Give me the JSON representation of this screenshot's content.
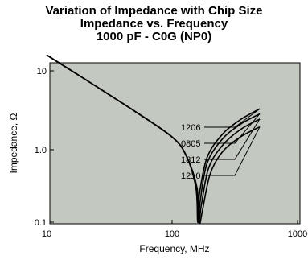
{
  "chart_data": {
    "type": "line",
    "title": [
      "Variation of Impedance with Chip Size",
      "Impedance vs. Frequency",
      "1000 pF - C0G (NP0)"
    ],
    "xlabel": "Frequency, MHz",
    "ylabel": "Impedance, Ω",
    "xscale": "log",
    "yscale": "log",
    "xlim": [
      10,
      1000
    ],
    "ylim": [
      0.1,
      12
    ],
    "x_ticks": [
      10,
      100,
      1000
    ],
    "x_tick_labels": [
      "10",
      "100",
      "1000"
    ],
    "y_ticks": [
      0.1,
      1,
      10
    ],
    "y_tick_labels": [
      "0.1",
      "1.0",
      "10"
    ],
    "background": "#c3c8c1",
    "series": [
      {
        "name": "1206",
        "x": [
          10,
          20,
          50,
          100,
          130,
          155,
          160,
          165,
          190,
          250,
          350,
          500
        ],
        "y": [
          15.9,
          7.9,
          3.1,
          1.45,
          0.82,
          0.3,
          0.1,
          0.24,
          0.78,
          1.55,
          2.4,
          3.3
        ]
      },
      {
        "name": "0805",
        "x": [
          10,
          20,
          50,
          100,
          130,
          155,
          161,
          168,
          190,
          250,
          350,
          500
        ],
        "y": [
          15.9,
          7.9,
          3.1,
          1.45,
          0.82,
          0.3,
          0.1,
          0.2,
          0.65,
          1.35,
          2.1,
          2.85
        ]
      },
      {
        "name": "1812",
        "x": [
          10,
          20,
          50,
          100,
          130,
          157,
          163,
          171,
          195,
          250,
          350,
          500
        ],
        "y": [
          15.9,
          7.9,
          3.1,
          1.45,
          0.82,
          0.3,
          0.1,
          0.17,
          0.55,
          1.12,
          1.8,
          2.45
        ]
      },
      {
        "name": "1210",
        "x": [
          10,
          20,
          50,
          100,
          130,
          158,
          165,
          174,
          200,
          250,
          350,
          500
        ],
        "y": [
          15.9,
          7.9,
          3.1,
          1.45,
          0.82,
          0.3,
          0.1,
          0.14,
          0.45,
          0.92,
          1.45,
          1.95
        ]
      }
    ]
  }
}
